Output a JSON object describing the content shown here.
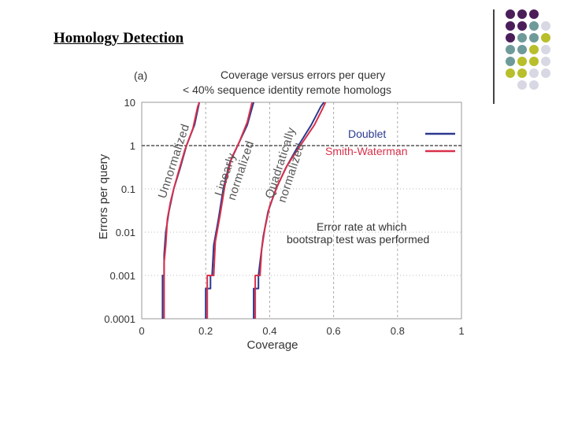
{
  "slide": {
    "title": "Homology Detection"
  },
  "decor": {
    "dot_colors": [
      "#4b1e5a",
      "#6f9a9a",
      "#b8bf2a",
      "#d8d8e4"
    ]
  },
  "chart_data": {
    "type": "line",
    "panel_label": "(a)",
    "title": "Coverage versus errors per query",
    "subtitle": "< 40% sequence identity remote homologs",
    "xlabel": "Coverage",
    "ylabel": "Errors per query",
    "xlim": [
      0,
      1
    ],
    "ylim_log": [
      0.0001,
      10
    ],
    "x_ticks": [
      0,
      0.2,
      0.4,
      0.6,
      0.8,
      1
    ],
    "x_tick_labels": [
      "0",
      "0.2",
      "0.4",
      "0.6",
      "0.8",
      "1"
    ],
    "y_ticks": [
      0.0001,
      0.001,
      0.01,
      0.1,
      1,
      10
    ],
    "y_tick_labels": [
      "0.0001",
      "0.001",
      "0.01",
      "0.1",
      "1",
      "10"
    ],
    "grid": true,
    "legend": {
      "position": "top-right",
      "entries": [
        {
          "name": "Doublet",
          "color": "#2b3a8f"
        },
        {
          "name": "Smith-Waterman",
          "color": "#d8304a"
        }
      ]
    },
    "reference_line": {
      "y": 1,
      "style": "dashed"
    },
    "curve_labels": [
      "Unnormalized",
      "Linearly normalized",
      "Quadratically normalized"
    ],
    "annotation": [
      "Error rate at which",
      "bootstrap test was performed"
    ],
    "series": [
      {
        "name": "Doublet",
        "group": "Unnormalized",
        "color": "#2b3a8f",
        "points": [
          [
            0.065,
            0.0001
          ],
          [
            0.065,
            0.001
          ],
          [
            0.07,
            0.001
          ],
          [
            0.07,
            0.003
          ],
          [
            0.075,
            0.01
          ],
          [
            0.085,
            0.03
          ],
          [
            0.1,
            0.1
          ],
          [
            0.12,
            0.3
          ],
          [
            0.14,
            1
          ],
          [
            0.165,
            3
          ],
          [
            0.18,
            10
          ]
        ]
      },
      {
        "name": "Smith-Waterman",
        "group": "Unnormalized",
        "color": "#d8304a",
        "points": [
          [
            0.07,
            0.0001
          ],
          [
            0.07,
            0.002
          ],
          [
            0.075,
            0.005
          ],
          [
            0.08,
            0.02
          ],
          [
            0.09,
            0.05
          ],
          [
            0.1,
            0.1
          ],
          [
            0.115,
            0.25
          ],
          [
            0.135,
            0.8
          ],
          [
            0.16,
            2.5
          ],
          [
            0.175,
            8
          ],
          [
            0.18,
            10
          ]
        ]
      },
      {
        "name": "Doublet",
        "group": "Linearly normalized",
        "color": "#2b3a8f",
        "points": [
          [
            0.2,
            0.0001
          ],
          [
            0.2,
            0.0005
          ],
          [
            0.215,
            0.0005
          ],
          [
            0.215,
            0.001
          ],
          [
            0.22,
            0.001
          ],
          [
            0.225,
            0.005
          ],
          [
            0.24,
            0.02
          ],
          [
            0.255,
            0.1
          ],
          [
            0.275,
            0.4
          ],
          [
            0.3,
            1
          ],
          [
            0.33,
            3
          ],
          [
            0.35,
            10
          ]
        ]
      },
      {
        "name": "Smith-Waterman",
        "group": "Linearly normalized",
        "color": "#d8304a",
        "points": [
          [
            0.205,
            0.0001
          ],
          [
            0.205,
            0.001
          ],
          [
            0.225,
            0.001
          ],
          [
            0.23,
            0.006
          ],
          [
            0.245,
            0.025
          ],
          [
            0.26,
            0.12
          ],
          [
            0.28,
            0.5
          ],
          [
            0.305,
            1.2
          ],
          [
            0.33,
            3.5
          ],
          [
            0.345,
            10
          ]
        ]
      },
      {
        "name": "Doublet",
        "group": "Quadratically normalized",
        "color": "#2b3a8f",
        "points": [
          [
            0.35,
            0.0001
          ],
          [
            0.35,
            0.0005
          ],
          [
            0.365,
            0.0005
          ],
          [
            0.365,
            0.001
          ],
          [
            0.37,
            0.002
          ],
          [
            0.38,
            0.008
          ],
          [
            0.395,
            0.03
          ],
          [
            0.42,
            0.1
          ],
          [
            0.45,
            0.3
          ],
          [
            0.49,
            1
          ],
          [
            0.53,
            3
          ],
          [
            0.56,
            8
          ],
          [
            0.57,
            10
          ]
        ]
      },
      {
        "name": "Smith-Waterman",
        "group": "Quadratically normalized",
        "color": "#d8304a",
        "points": [
          [
            0.355,
            0.0001
          ],
          [
            0.355,
            0.001
          ],
          [
            0.37,
            0.001
          ],
          [
            0.375,
            0.004
          ],
          [
            0.385,
            0.012
          ],
          [
            0.4,
            0.04
          ],
          [
            0.425,
            0.12
          ],
          [
            0.455,
            0.35
          ],
          [
            0.5,
            1.1
          ],
          [
            0.54,
            3
          ],
          [
            0.565,
            7
          ],
          [
            0.575,
            10
          ]
        ]
      }
    ]
  }
}
